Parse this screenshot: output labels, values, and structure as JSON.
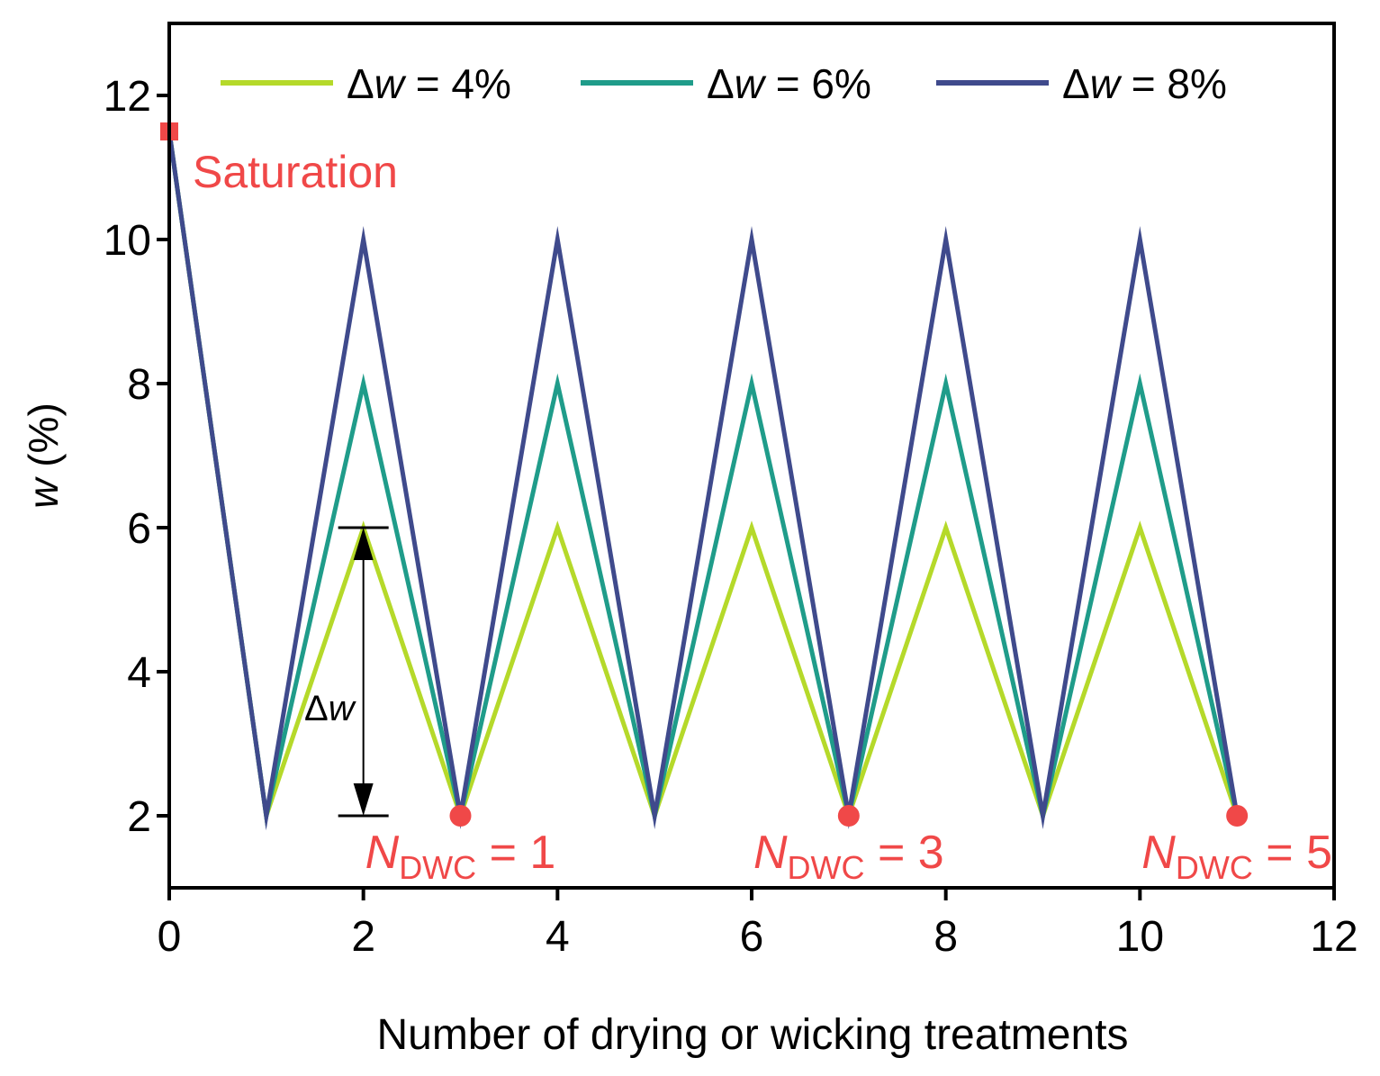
{
  "chart_data": {
    "type": "line",
    "title": "",
    "xlabel": "Number of drying or wicking treatments",
    "ylabel": {
      "var": "w",
      "rest": " (%)"
    },
    "xlim": [
      0,
      12
    ],
    "ylim": [
      1,
      13
    ],
    "xticks": [
      0,
      2,
      4,
      6,
      8,
      10,
      12
    ],
    "yticks": [
      2,
      4,
      6,
      8,
      10,
      12
    ],
    "x": [
      0,
      1,
      2,
      3,
      4,
      5,
      6,
      7,
      8,
      9,
      10,
      11
    ],
    "series": [
      {
        "name": "Δw = 4%",
        "prefix": "Δ",
        "var": "w",
        "suffix": " = 4%",
        "color": "#b5d92a",
        "values": [
          11.5,
          2,
          6,
          2,
          6,
          2,
          6,
          2,
          6,
          2,
          6,
          2
        ]
      },
      {
        "name": "Δw = 6%",
        "prefix": "Δ",
        "var": "w",
        "suffix": " = 6%",
        "color": "#1f9c8a",
        "values": [
          11.5,
          2,
          8,
          2,
          8,
          2,
          8,
          2,
          8,
          2,
          8,
          2
        ]
      },
      {
        "name": "Δw = 8%",
        "prefix": "Δ",
        "var": "w",
        "suffix": " = 8%",
        "color": "#3f4a8c",
        "values": [
          11.5,
          2,
          10,
          2,
          10,
          2,
          10,
          2,
          10,
          2,
          10,
          2
        ]
      }
    ],
    "legend_position": "top",
    "saturation": {
      "label": "Saturation",
      "x": 0,
      "y": 11.5,
      "color": "#f04848"
    },
    "ndwc_markers": [
      {
        "x": 3,
        "y": 2,
        "var": "N",
        "sub": "DWC",
        "rest": " = 1"
      },
      {
        "x": 7,
        "y": 2,
        "var": "N",
        "sub": "DWC",
        "rest": " = 3"
      },
      {
        "x": 11,
        "y": 2,
        "var": "N",
        "sub": "DWC",
        "rest": " = 5"
      }
    ],
    "marker_color": "#f04848",
    "delta_annotation": {
      "prefix": "Δ",
      "var": "w",
      "x": 2,
      "y_low": 2,
      "y_high": 6
    }
  }
}
